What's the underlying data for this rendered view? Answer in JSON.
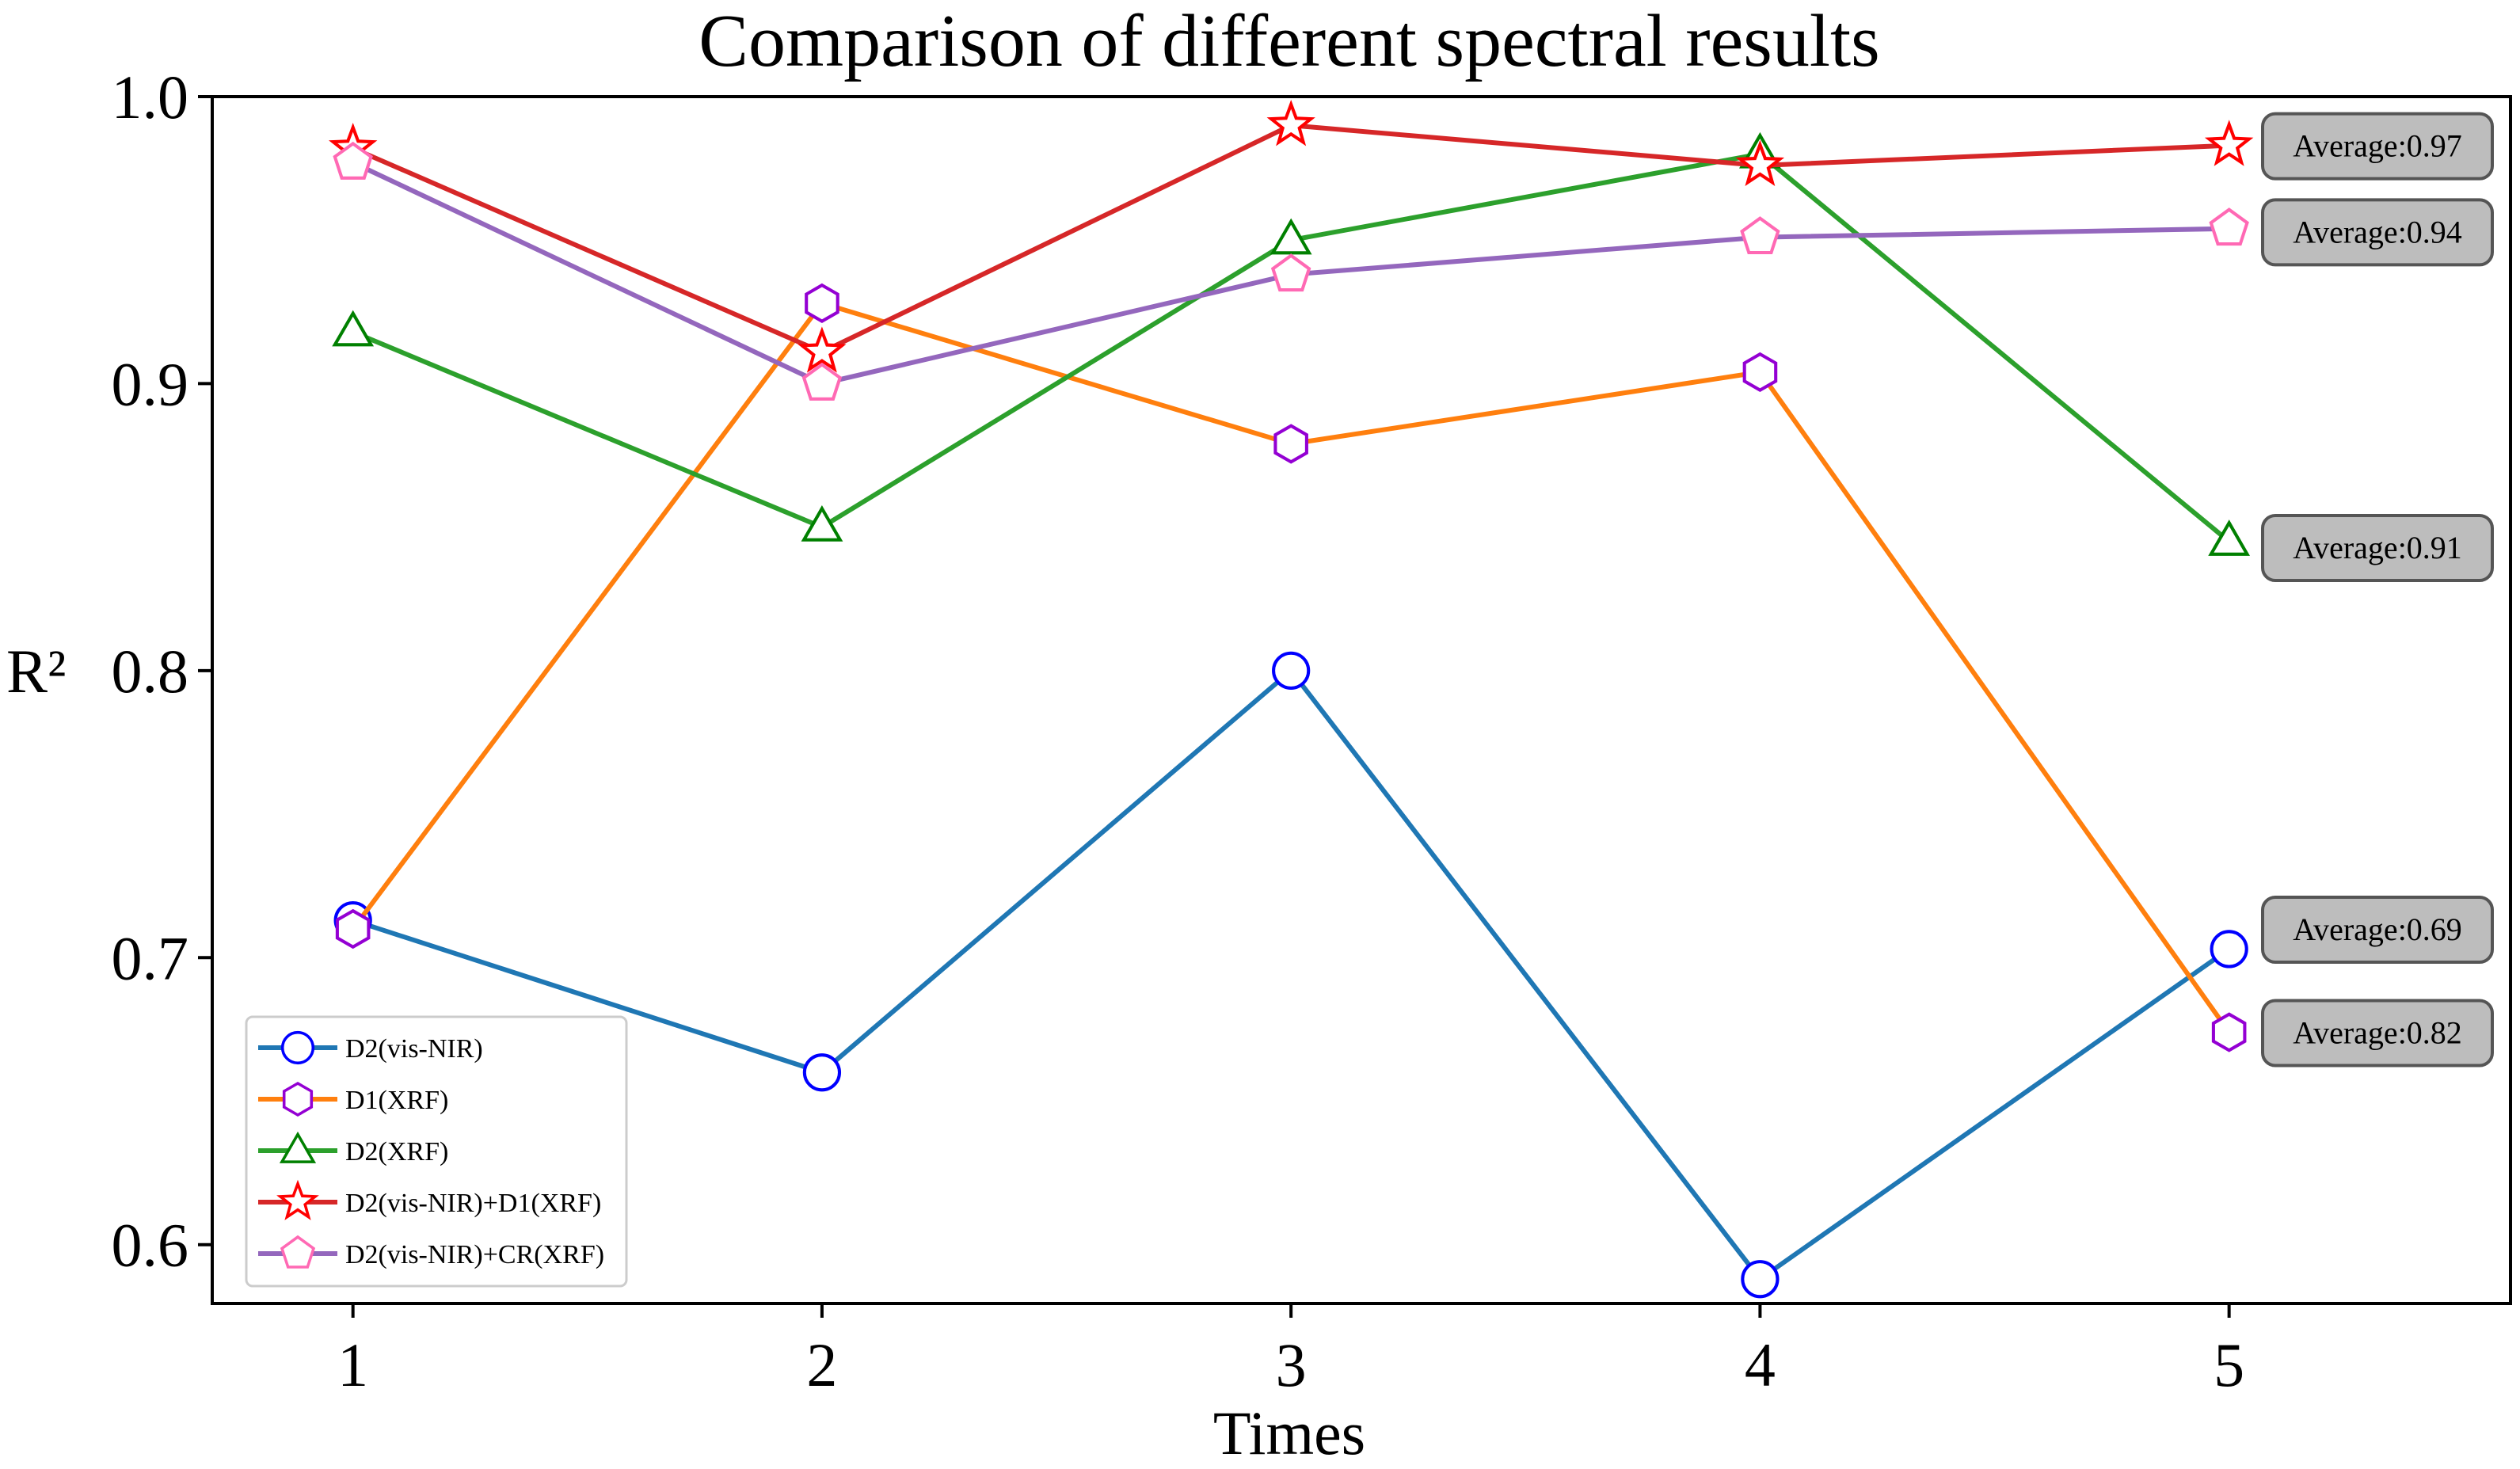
{
  "chart_data": {
    "type": "line",
    "title": "Comparison of different spectral results",
    "xlabel": "Times",
    "ylabel": "R²",
    "x": [
      1,
      2,
      3,
      4,
      5
    ],
    "x_tick_labels": [
      "1",
      "2",
      "3",
      "4",
      "5"
    ],
    "xlim": [
      0.7,
      5.6
    ],
    "ylim": [
      0.5795,
      1.0
    ],
    "y_ticks": [
      0.6,
      0.7,
      0.8,
      0.9,
      1.0
    ],
    "y_tick_labels": [
      "0.6",
      "0.7",
      "0.8",
      "0.9",
      "1.0"
    ],
    "grid": false,
    "legend_position": "bottom-left",
    "series": [
      {
        "name": "D2(vis-NIR)",
        "values": [
          0.713,
          0.66,
          0.8,
          0.588,
          0.703
        ],
        "line_color": "#1f77b4",
        "marker": "circle",
        "marker_edge": "#0000ff",
        "marker_fill": "#ffffff",
        "annotation": "Average:0.69",
        "annotation_y": 0.71
      },
      {
        "name": "D1(XRF)",
        "values": [
          0.71,
          0.928,
          0.879,
          0.904,
          0.674
        ],
        "line_color": "#ff7f0e",
        "marker": "hexagon",
        "marker_edge": "#9400d3",
        "marker_fill": "#ffffff",
        "annotation": "Average:0.82",
        "annotation_y": 0.674
      },
      {
        "name": "D2(XRF)",
        "values": [
          0.918,
          0.85,
          0.95,
          0.98,
          0.845
        ],
        "line_color": "#2ca02c",
        "marker": "triangle",
        "marker_edge": "#008000",
        "marker_fill": "#ffffff",
        "annotation": "Average:0.91",
        "annotation_y": 0.843
      },
      {
        "name": "D2(vis-NIR)+D1(XRF)",
        "values": [
          0.982,
          0.911,
          0.99,
          0.976,
          0.983
        ],
        "line_color": "#d62728",
        "marker": "star",
        "marker_edge": "#ff0000",
        "marker_fill": "#ffffff",
        "annotation": "Average:0.97",
        "annotation_y": 0.983
      },
      {
        "name": "D2(vis-NIR)+CR(XRF)",
        "values": [
          0.977,
          0.9,
          0.938,
          0.951,
          0.954
        ],
        "line_color": "#9467bd",
        "marker": "pentagon",
        "marker_edge": "#ff69b4",
        "marker_fill": "#ffffff",
        "annotation": "Average:0.94",
        "annotation_y": 0.953
      }
    ]
  }
}
